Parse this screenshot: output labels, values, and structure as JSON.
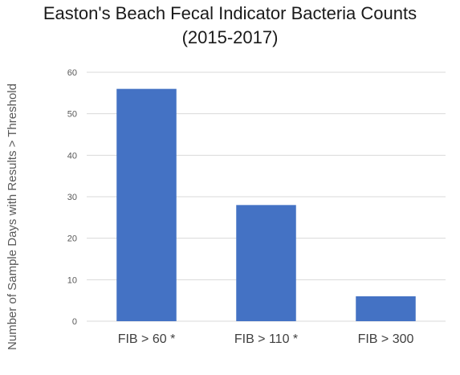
{
  "chart_data": {
    "type": "bar",
    "title_lines": [
      "Easton's Beach Fecal Indicator Bacteria Counts",
      "(2015-2017)"
    ],
    "xlabel": "",
    "ylabel": "Number of Sample Days with Results > Threshold",
    "categories": [
      "FIB > 60 *",
      "FIB > 110 *",
      "FIB > 300"
    ],
    "values": [
      56,
      28,
      6
    ],
    "ylim": [
      0,
      60
    ],
    "yticks": [
      0,
      10,
      20,
      30,
      40,
      50,
      60
    ],
    "grid": true,
    "legend": "none",
    "bar_color": "#4472C4",
    "grid_color": "#d9d9d9"
  }
}
